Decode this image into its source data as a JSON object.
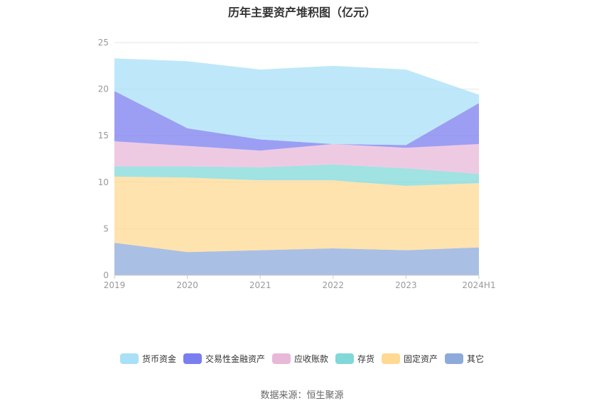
{
  "chart_data": {
    "type": "area",
    "stacked": true,
    "title": "历年主要资产堆积图（亿元）",
    "categories": [
      "2019",
      "2020",
      "2021",
      "2022",
      "2023",
      "2024H1"
    ],
    "ylim": [
      0,
      25
    ],
    "yticks": [
      0,
      5,
      10,
      15,
      20,
      25
    ],
    "grid": true,
    "legend_position": "bottom",
    "series": [
      {
        "name": "其它",
        "color": "#8eaadb",
        "values": [
          3.5,
          2.5,
          2.7,
          2.9,
          2.7,
          3.0
        ]
      },
      {
        "name": "固定资产",
        "color": "#ffd994",
        "values": [
          7.1,
          8.0,
          7.5,
          7.3,
          6.9,
          6.9
        ]
      },
      {
        "name": "存货",
        "color": "#81d8d8",
        "values": [
          1.1,
          1.2,
          1.4,
          1.7,
          1.9,
          1.0
        ]
      },
      {
        "name": "应收账款",
        "color": "#e8b8d8",
        "values": [
          2.7,
          2.2,
          1.8,
          2.2,
          2.2,
          3.2
        ]
      },
      {
        "name": "交易性金融资产",
        "color": "#7b7ef0",
        "values": [
          5.4,
          1.9,
          1.2,
          0.0,
          0.3,
          4.4
        ]
      },
      {
        "name": "货币资金",
        "color": "#a8e0f8",
        "values": [
          3.5,
          7.2,
          7.5,
          8.4,
          8.1,
          0.9
        ]
      }
    ],
    "legend_order": [
      "货币资金",
      "交易性金融资产",
      "应收账款",
      "存货",
      "固定资产",
      "其它"
    ]
  },
  "source_label": "数据来源：恒生聚源"
}
